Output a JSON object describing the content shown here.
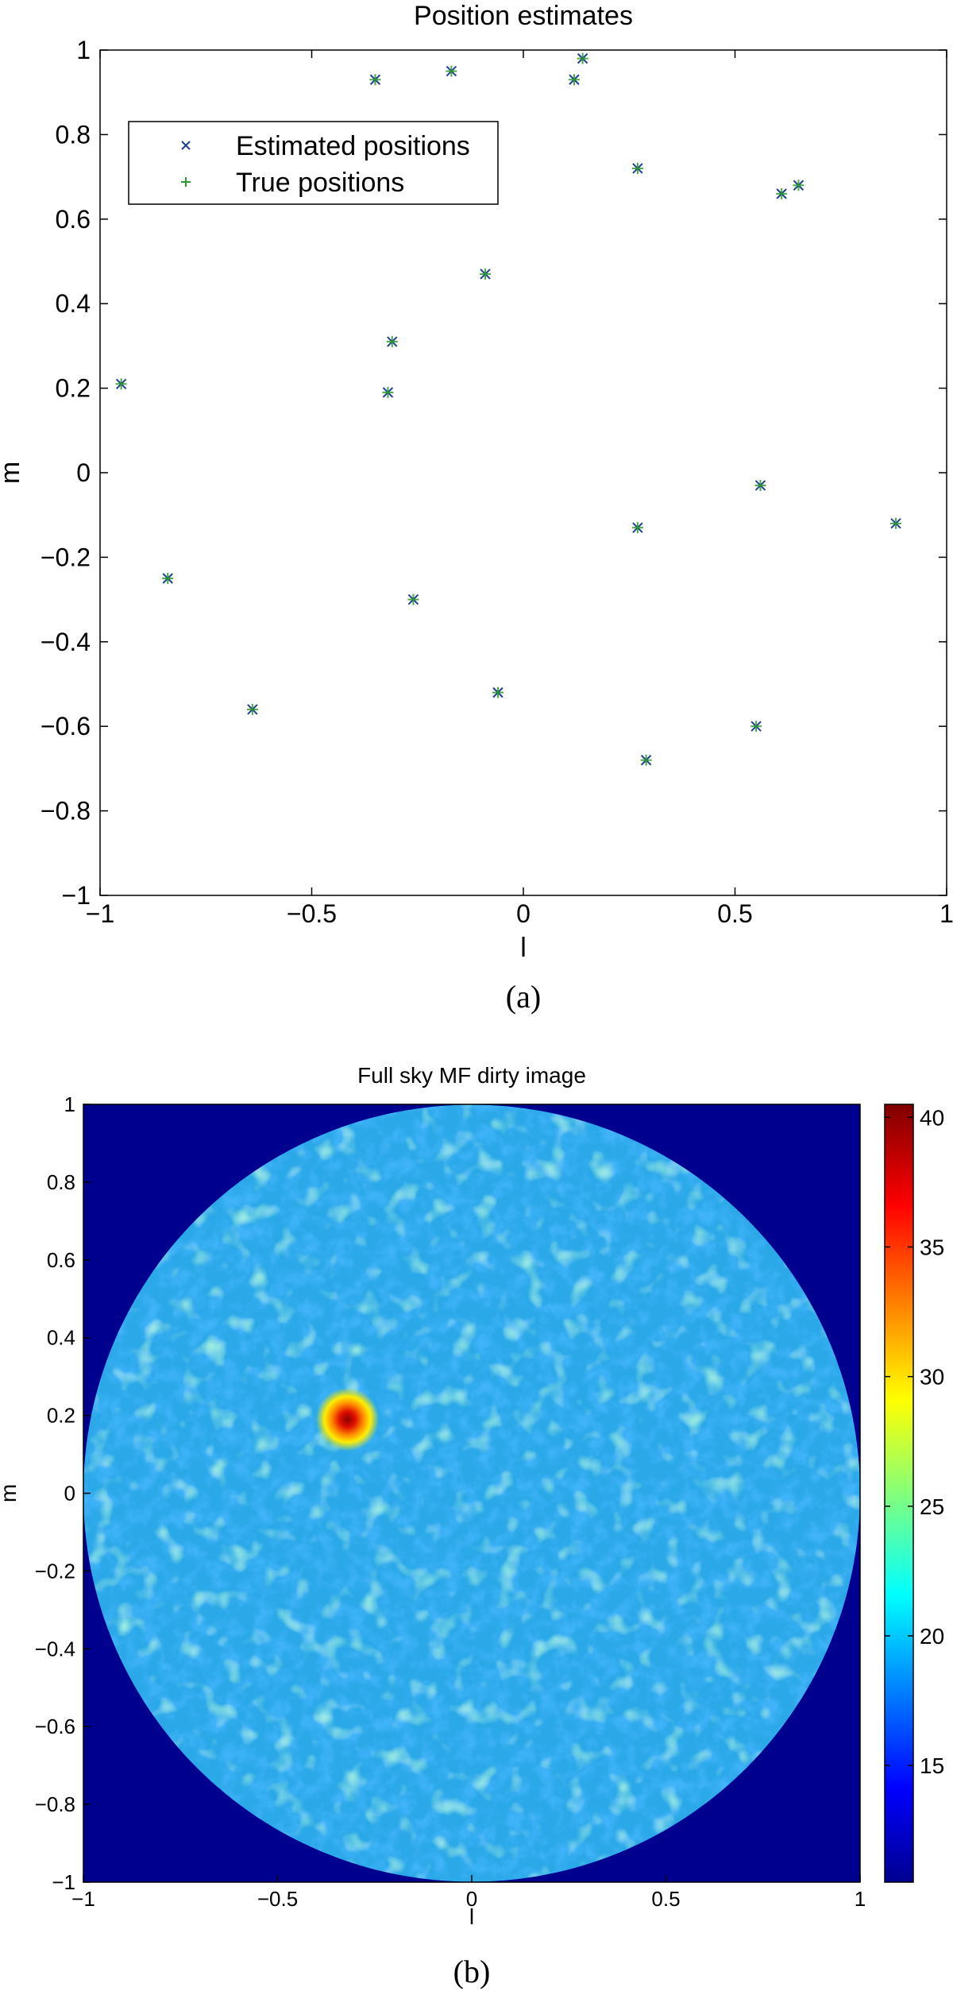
{
  "chart_data": [
    {
      "type": "scatter",
      "title": "Position estimates",
      "xlabel": "l",
      "ylabel": "m",
      "xlim": [
        -1,
        1
      ],
      "ylim": [
        -1,
        1
      ],
      "xticks": [
        "−1",
        "−0.5",
        "0",
        "0.5",
        "1"
      ],
      "yticks": [
        "1",
        "0.8",
        "0.6",
        "0.4",
        "0.2",
        "0",
        "−0.2",
        "−0.4",
        "−0.6",
        "−0.8",
        "−1"
      ],
      "legend_position": "top-left",
      "caption": "(a)",
      "series": [
        {
          "name": "Estimated positions",
          "marker": "x",
          "color": "#1f3f8f",
          "points": [
            [
              -0.95,
              0.21
            ],
            [
              -0.35,
              0.93
            ],
            [
              -0.17,
              0.95
            ],
            [
              0.12,
              0.93
            ],
            [
              0.14,
              0.98
            ],
            [
              0.27,
              0.72
            ],
            [
              0.61,
              0.66
            ],
            [
              0.65,
              0.68
            ],
            [
              -0.09,
              0.47
            ],
            [
              -0.31,
              0.31
            ],
            [
              -0.32,
              0.19
            ],
            [
              -0.84,
              -0.25
            ],
            [
              -0.26,
              -0.3
            ],
            [
              0.27,
              -0.13
            ],
            [
              0.56,
              -0.03
            ],
            [
              0.88,
              -0.12
            ],
            [
              -0.64,
              -0.56
            ],
            [
              -0.06,
              -0.52
            ],
            [
              0.29,
              -0.68
            ],
            [
              0.55,
              -0.6
            ]
          ]
        },
        {
          "name": "True positions",
          "marker": "+",
          "color": "#2a9a2a",
          "points": [
            [
              -0.95,
              0.21
            ],
            [
              -0.35,
              0.93
            ],
            [
              -0.17,
              0.95
            ],
            [
              0.12,
              0.93
            ],
            [
              0.14,
              0.98
            ],
            [
              0.27,
              0.72
            ],
            [
              0.61,
              0.66
            ],
            [
              0.65,
              0.68
            ],
            [
              -0.09,
              0.47
            ],
            [
              -0.31,
              0.31
            ],
            [
              -0.32,
              0.19
            ],
            [
              -0.84,
              -0.25
            ],
            [
              -0.26,
              -0.3
            ],
            [
              0.27,
              -0.13
            ],
            [
              0.56,
              -0.03
            ],
            [
              0.88,
              -0.12
            ],
            [
              -0.64,
              -0.56
            ],
            [
              -0.06,
              -0.52
            ],
            [
              0.29,
              -0.68
            ],
            [
              0.55,
              -0.6
            ]
          ]
        }
      ]
    },
    {
      "type": "heatmap",
      "title": "Full sky MF dirty image",
      "xlabel": "l",
      "ylabel": "m",
      "xlim": [
        -1,
        1
      ],
      "ylim": [
        -1,
        1
      ],
      "xticks": [
        "−1",
        "−0.5",
        "0",
        "0.5",
        "1"
      ],
      "yticks": [
        "1",
        "0.8",
        "0.6",
        "0.4",
        "0.2",
        "0",
        "−0.2",
        "−0.4",
        "−0.6",
        "−0.8",
        "−1"
      ],
      "colorbar": {
        "range": [
          10.5,
          40.5
        ],
        "ticks": [
          "40",
          "35",
          "30",
          "25",
          "20",
          "15"
        ],
        "colormap": "jet"
      },
      "background_color": "#00008f",
      "disk_color": "#2aa8e8",
      "peak": {
        "l": -0.32,
        "m": 0.19,
        "value": 40.5
      },
      "caption": "(b)"
    }
  ]
}
